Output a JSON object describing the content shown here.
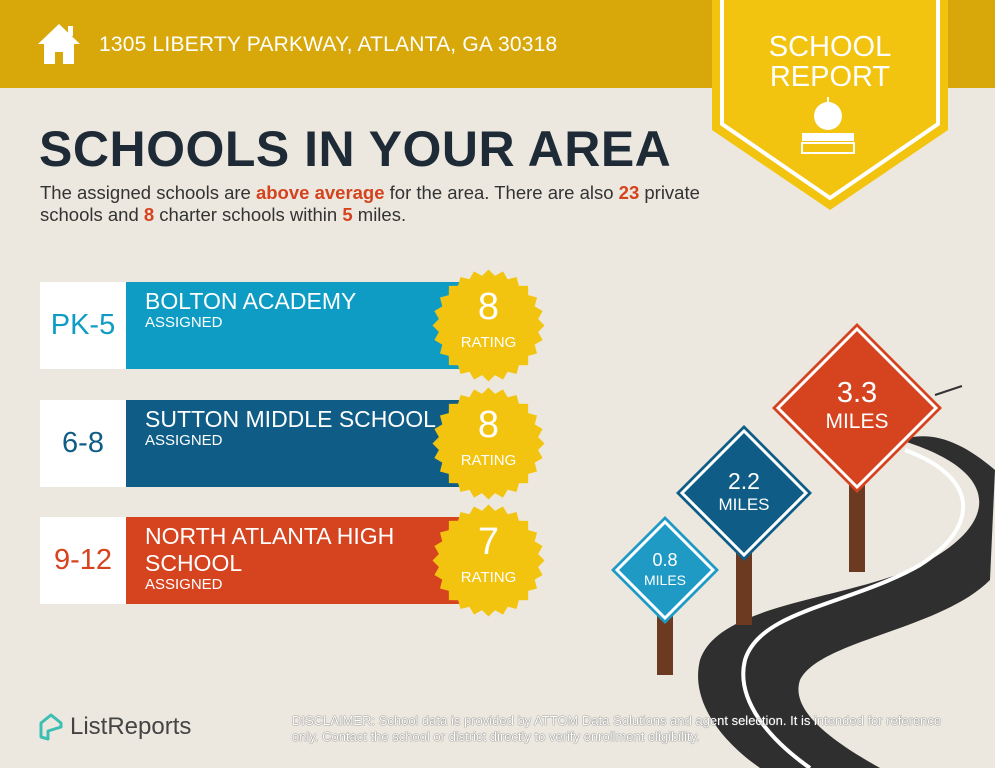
{
  "header": {
    "address": "1305 LIBERTY PARKWAY, ATLANTA, GA 30318",
    "badge_line1": "SCHOOL",
    "badge_line2": "REPORT"
  },
  "title": "SCHOOLS IN YOUR AREA",
  "description": {
    "p1": "The assigned schools are ",
    "h1": "above average",
    "p2": " for the area. There are also ",
    "h2": "23",
    "p3": " private schools and ",
    "h3": "8",
    "p4": " charter schools within ",
    "h4": "5",
    "p5": " miles."
  },
  "schools": [
    {
      "grades": "PK-5",
      "name": "Bolton Academy",
      "status": "ASSIGNED",
      "rating": "8",
      "rating_label": "RATING",
      "color": "#0E9CC4"
    },
    {
      "grades": "6-8",
      "name": "Sutton Middle School",
      "status": "ASSIGNED",
      "rating": "8",
      "rating_label": "RATING",
      "color": "#0F5D86"
    },
    {
      "grades": "9-12",
      "name": "North Atlanta High School",
      "status": "ASSIGNED",
      "rating": "7",
      "rating_label": "RATING",
      "color": "#D5431F"
    }
  ],
  "signs": [
    {
      "value": "0.8",
      "unit": "MILES",
      "color": "#1E9AC4"
    },
    {
      "value": "2.2",
      "unit": "MILES",
      "color": "#0F5D86"
    },
    {
      "value": "3.3",
      "unit": "MILES",
      "color": "#D5431F"
    }
  ],
  "footer": {
    "brand": "ListReports",
    "disclaimer_label": "DISCLAIMER:",
    "disclaimer": " School data is provided by ATTOM Data Solutions and agent selection. It is intended for reference only. Contact the school or district directly to verify enrollment eligibility."
  }
}
